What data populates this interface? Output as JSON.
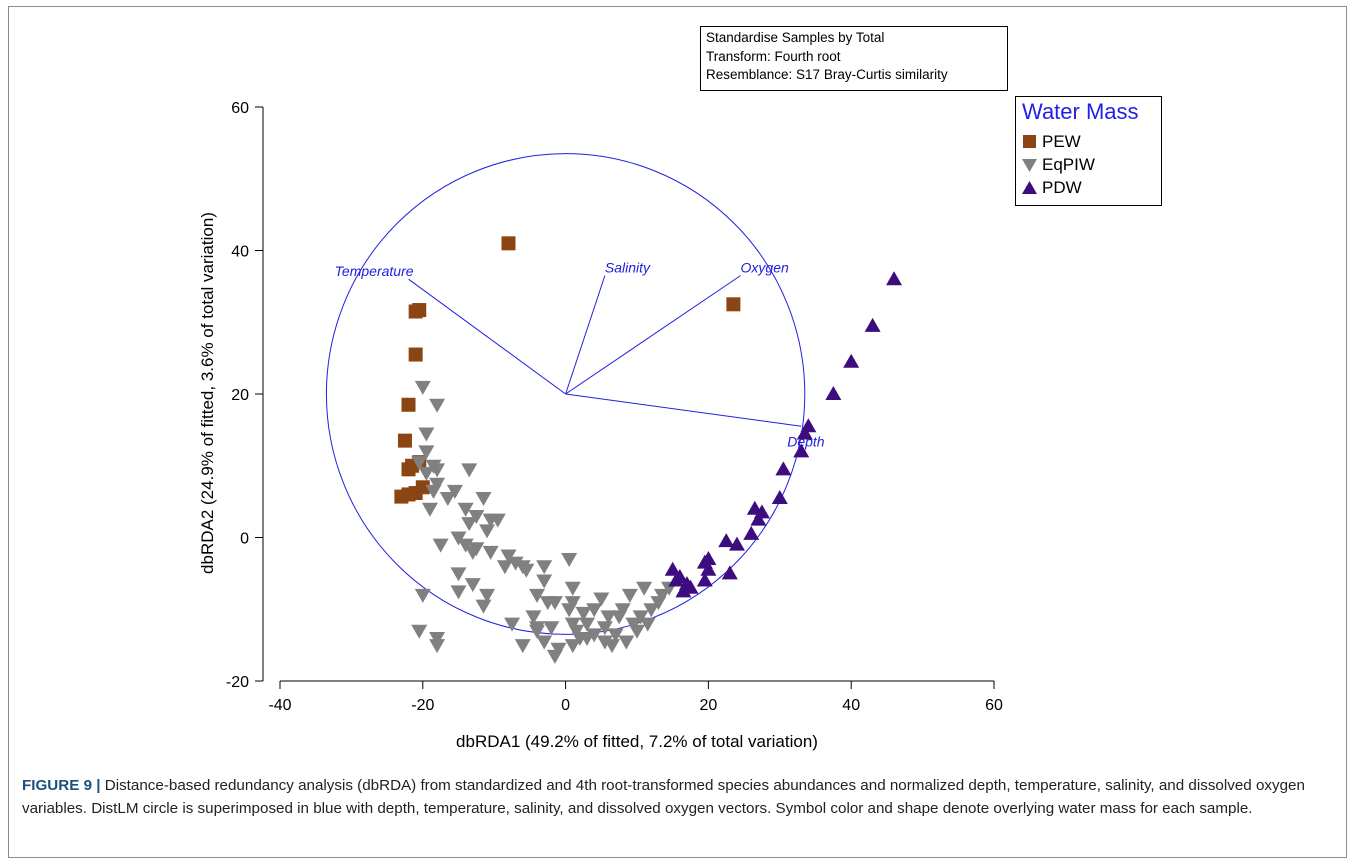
{
  "settings": {
    "line1": "Standardise Samples by Total",
    "line2": "Transform: Fourth root",
    "line3": "Resemblance: S17 Bray-Curtis similarity"
  },
  "legend": {
    "title": "Water Mass",
    "items": [
      {
        "label": "PEW",
        "color": "#8b4513",
        "shape": "square"
      },
      {
        "label": "EqPIW",
        "color": "#808080",
        "shape": "triangle-down"
      },
      {
        "label": "PDW",
        "color": "#3d0d80",
        "shape": "triangle-up"
      }
    ]
  },
  "caption": {
    "label": "FIGURE 9 |",
    "text": " Distance-based redundancy analysis (dbRDA) from standardized and 4th root-transformed species abundances and normalized depth, temperature, salinity, and dissolved oxygen variables. DistLM circle is superimposed in blue with depth, temperature, salinity, and dissolved oxygen vectors. Symbol color and shape denote overlying water mass for each sample."
  },
  "chart_data": {
    "type": "scatter",
    "xlabel": "dbRDA1 (49.2% of fitted, 7.2% of total variation)",
    "ylabel": "dbRDA2 (24.9% of fitted, 3.6% of total variation)",
    "xlim": [
      -40,
      60
    ],
    "ylim": [
      -20,
      60
    ],
    "xticks": [
      -40,
      -20,
      0,
      20,
      40,
      60
    ],
    "yticks": [
      -20,
      0,
      20,
      40,
      60
    ],
    "grid": false,
    "legend_position": "top-right, outside",
    "circle": {
      "center": [
        0,
        20
      ],
      "radius": 33.5,
      "color": "#2020e0"
    },
    "vectors": [
      {
        "name": "Temperature",
        "x": -22,
        "y": 36
      },
      {
        "name": "Salinity",
        "x": 5.5,
        "y": 36.5
      },
      {
        "name": "Oxygen",
        "x": 24.5,
        "y": 36.5
      },
      {
        "name": "Depth",
        "x": 33,
        "y": 15.5
      }
    ],
    "series": [
      {
        "name": "PEW",
        "color": "#8b4513",
        "marker": "square",
        "points": [
          [
            -8,
            41
          ],
          [
            23.5,
            32.5
          ],
          [
            -21,
            31.5
          ],
          [
            -20.5,
            31.7
          ],
          [
            -21,
            25.5
          ],
          [
            -22,
            18.5
          ],
          [
            -22.5,
            13.5
          ],
          [
            -22,
            9.5
          ],
          [
            -21.5,
            10
          ],
          [
            -20.5,
            10.5
          ],
          [
            -20,
            7
          ],
          [
            -21,
            6.2
          ],
          [
            -22,
            6
          ],
          [
            -23,
            5.7
          ]
        ]
      },
      {
        "name": "EqPIW",
        "color": "#808080",
        "marker": "triangle-down",
        "points": [
          [
            -20,
            21
          ],
          [
            -18,
            18.5
          ],
          [
            -19.5,
            14.5
          ],
          [
            -19.5,
            12
          ],
          [
            -20.5,
            10.5
          ],
          [
            -18.5,
            10
          ],
          [
            -19.5,
            9
          ],
          [
            -18,
            9.5
          ],
          [
            -13.5,
            9.5
          ],
          [
            -18,
            7.5
          ],
          [
            -18.5,
            6.5
          ],
          [
            -15.5,
            6.5
          ],
          [
            -16.5,
            5.5
          ],
          [
            -14,
            4
          ],
          [
            -11.5,
            5.5
          ],
          [
            -19,
            4
          ],
          [
            -12.5,
            3
          ],
          [
            -10.5,
            2.5
          ],
          [
            -9.5,
            2.5
          ],
          [
            -13.5,
            2
          ],
          [
            -11,
            1
          ],
          [
            -15,
            0
          ],
          [
            -17.5,
            -1
          ],
          [
            -14,
            -1
          ],
          [
            -12.5,
            -1.5
          ],
          [
            -13,
            -2
          ],
          [
            -10.5,
            -2
          ],
          [
            -8,
            -2.5
          ],
          [
            -7,
            -3.5
          ],
          [
            -6,
            -4
          ],
          [
            -5.5,
            -4.5
          ],
          [
            -8.5,
            -4
          ],
          [
            -15,
            -5
          ],
          [
            -13,
            -6.5
          ],
          [
            -15,
            -7.5
          ],
          [
            -20,
            -8
          ],
          [
            -11,
            -8
          ],
          [
            -11.5,
            -9.5
          ],
          [
            -3,
            -4
          ],
          [
            0.5,
            -3
          ],
          [
            -3,
            -6
          ],
          [
            -4,
            -8
          ],
          [
            -1.5,
            -9
          ],
          [
            1,
            -7
          ],
          [
            1,
            -9
          ],
          [
            0.5,
            -10
          ],
          [
            5,
            -8.5
          ],
          [
            4,
            -10
          ],
          [
            2.5,
            -10.5
          ],
          [
            6,
            -11
          ],
          [
            3,
            -12
          ],
          [
            1,
            -12
          ],
          [
            -2.5,
            -9
          ],
          [
            -4.5,
            -11
          ],
          [
            -4,
            -12.5
          ],
          [
            -7.5,
            -12
          ],
          [
            -4,
            -13
          ],
          [
            -2,
            -12.5
          ],
          [
            1.5,
            -13
          ],
          [
            2,
            -14
          ],
          [
            4,
            -13.5
          ],
          [
            5.5,
            -12.5
          ],
          [
            7.5,
            -11
          ],
          [
            8,
            -10
          ],
          [
            9.5,
            -12
          ],
          [
            7,
            -13.5
          ],
          [
            8.5,
            -14.5
          ],
          [
            10,
            -13
          ],
          [
            11.5,
            -12
          ],
          [
            10.5,
            -11
          ],
          [
            12,
            -10
          ],
          [
            13,
            -9
          ],
          [
            13.5,
            -8
          ],
          [
            14.5,
            -7
          ],
          [
            9,
            -8
          ],
          [
            11,
            -7
          ],
          [
            -20.5,
            -13
          ],
          [
            -18,
            -14
          ],
          [
            -18,
            -15
          ],
          [
            -6,
            -15
          ],
          [
            -1,
            -15.5
          ],
          [
            -1.5,
            -16.5
          ],
          [
            1,
            -15
          ],
          [
            -3,
            -14.5
          ],
          [
            5.5,
            -14.5
          ],
          [
            6.5,
            -15
          ],
          [
            3,
            -14
          ]
        ]
      },
      {
        "name": "PDW",
        "color": "#3d0d80",
        "marker": "triangle-up",
        "points": [
          [
            46,
            36
          ],
          [
            43,
            29.5
          ],
          [
            40,
            24.5
          ],
          [
            37.5,
            20
          ],
          [
            34,
            15.5
          ],
          [
            33.5,
            14.5
          ],
          [
            33,
            12
          ],
          [
            30.5,
            9.5
          ],
          [
            30,
            5.5
          ],
          [
            27.5,
            3.5
          ],
          [
            27,
            2.5
          ],
          [
            26.5,
            4
          ],
          [
            26,
            0.5
          ],
          [
            24,
            -1
          ],
          [
            22.5,
            -0.5
          ],
          [
            20,
            -3
          ],
          [
            19.5,
            -3.5
          ],
          [
            20,
            -4.5
          ],
          [
            19.5,
            -6
          ],
          [
            23,
            -5
          ],
          [
            15,
            -4.5
          ],
          [
            15.5,
            -6
          ],
          [
            16,
            -5.5
          ],
          [
            17,
            -6.5
          ],
          [
            17.5,
            -7
          ],
          [
            16.5,
            -7.5
          ]
        ]
      }
    ]
  }
}
